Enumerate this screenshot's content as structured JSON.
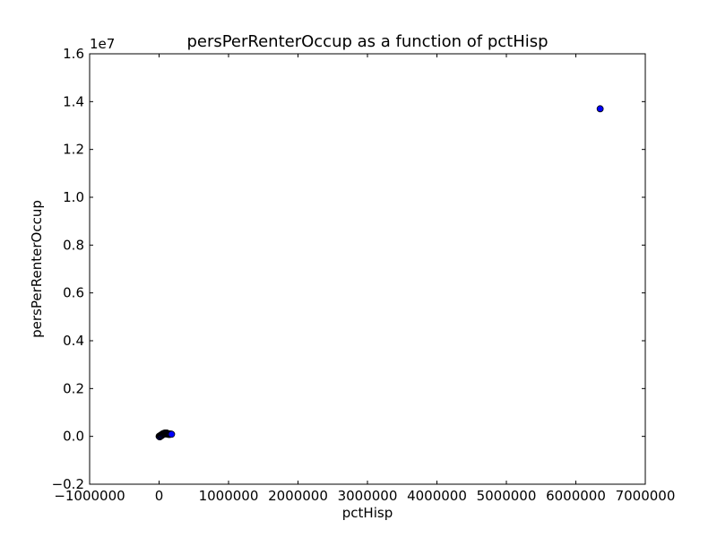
{
  "chart_data": {
    "type": "scatter",
    "title": "persPerRenterOccup as a function of pctHisp",
    "xlabel": "pctHisp",
    "ylabel": "persPerRenterOccup",
    "xlim": [
      -1000000,
      7000000
    ],
    "ylim": [
      -2000000,
      16000000
    ],
    "y_offset_text": "1e7",
    "x_ticks": [
      {
        "value": -1000000,
        "label": "−1000000"
      },
      {
        "value": 0,
        "label": "0"
      },
      {
        "value": 1000000,
        "label": "1000000"
      },
      {
        "value": 2000000,
        "label": "2000000"
      },
      {
        "value": 3000000,
        "label": "3000000"
      },
      {
        "value": 4000000,
        "label": "4000000"
      },
      {
        "value": 5000000,
        "label": "5000000"
      },
      {
        "value": 6000000,
        "label": "6000000"
      },
      {
        "value": 7000000,
        "label": "7000000"
      }
    ],
    "y_ticks": [
      {
        "value": -2000000,
        "label": "−0.2"
      },
      {
        "value": 0,
        "label": "0.0"
      },
      {
        "value": 2000000,
        "label": "0.2"
      },
      {
        "value": 4000000,
        "label": "0.4"
      },
      {
        "value": 6000000,
        "label": "0.6"
      },
      {
        "value": 8000000,
        "label": "0.8"
      },
      {
        "value": 10000000,
        "label": "1.0"
      },
      {
        "value": 12000000,
        "label": "1.2"
      },
      {
        "value": 14000000,
        "label": "1.4"
      },
      {
        "value": 16000000,
        "label": "1.6"
      }
    ],
    "grid": false,
    "marker_color": "#0000ff",
    "marker_edge_color": "#000000",
    "points": [
      {
        "x": 0,
        "y": 0
      },
      {
        "x": 5000,
        "y": 10000
      },
      {
        "x": 10000,
        "y": -20000
      },
      {
        "x": 15000,
        "y": 30000
      },
      {
        "x": 20000,
        "y": 15000
      },
      {
        "x": 25000,
        "y": 50000
      },
      {
        "x": 30000,
        "y": 20000
      },
      {
        "x": 35000,
        "y": 60000
      },
      {
        "x": 40000,
        "y": 40000
      },
      {
        "x": 45000,
        "y": 90000
      },
      {
        "x": 50000,
        "y": 70000
      },
      {
        "x": 55000,
        "y": 110000
      },
      {
        "x": 60000,
        "y": 80000
      },
      {
        "x": 65000,
        "y": 120000
      },
      {
        "x": 70000,
        "y": 100000
      },
      {
        "x": 75000,
        "y": 130000
      },
      {
        "x": 80000,
        "y": 110000
      },
      {
        "x": 85000,
        "y": 140000
      },
      {
        "x": 90000,
        "y": 120000
      },
      {
        "x": 95000,
        "y": 100000
      },
      {
        "x": 100000,
        "y": 130000
      },
      {
        "x": 105000,
        "y": 110000
      },
      {
        "x": 110000,
        "y": 140000
      },
      {
        "x": 115000,
        "y": 120000
      },
      {
        "x": 120000,
        "y": 100000
      },
      {
        "x": 125000,
        "y": 90000
      },
      {
        "x": 130000,
        "y": 110000
      },
      {
        "x": 135000,
        "y": 80000
      },
      {
        "x": 140000,
        "y": 100000
      },
      {
        "x": 145000,
        "y": 90000
      },
      {
        "x": 150000,
        "y": 100000
      },
      {
        "x": 155000,
        "y": 80000
      },
      {
        "x": 160000,
        "y": 90000
      },
      {
        "x": 170000,
        "y": 100000
      },
      {
        "x": 180000,
        "y": 90000
      },
      {
        "x": 6350000,
        "y": 13700000
      }
    ]
  }
}
